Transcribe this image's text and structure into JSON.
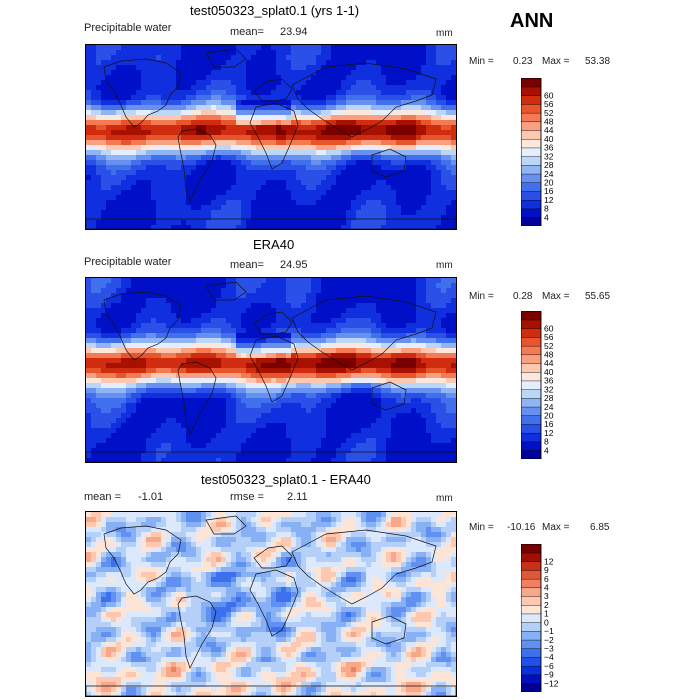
{
  "season": "ANN",
  "colors": {
    "abs_scale": [
      "#00009c",
      "#0010c8",
      "#1030e0",
      "#2a50e8",
      "#4070ec",
      "#6890f0",
      "#90b4f4",
      "#bcd6f8",
      "#e4eefc",
      "#fbe8dc",
      "#fcc8b0",
      "#faa080",
      "#f47a54",
      "#e8542c",
      "#d02c10",
      "#a81000",
      "#7a0000"
    ],
    "diff_scale": [
      "#000090",
      "#0010c0",
      "#0830e0",
      "#2050e8",
      "#3c70ec",
      "#6090f0",
      "#88b0f4",
      "#b4d0f8",
      "#dce8fc",
      "#fce4d6",
      "#fcc8b0",
      "#f8a88a",
      "#f08060",
      "#e05838",
      "#c83018",
      "#a01000",
      "#780000"
    ]
  },
  "chart_data": [
    {
      "type": "heatmap",
      "title": "test050323_splat0.1 (yrs 1-1)",
      "variable": "Precipitable water",
      "mean_label": "mean=",
      "mean_value": "23.94",
      "units": "mm",
      "min_label": "Min =",
      "min_value": "0.23",
      "max_label": "Max =",
      "max_value": "53.38",
      "colorbar_levels": [
        4,
        8,
        12,
        16,
        20,
        24,
        28,
        32,
        36,
        40,
        44,
        48,
        52,
        56,
        60
      ],
      "colorbar_labels": [
        "4",
        "8",
        "12",
        "16",
        "20",
        "24",
        "28",
        "32",
        "36",
        "40",
        "44",
        "48",
        "52",
        "56",
        "60"
      ]
    },
    {
      "type": "heatmap",
      "title": "ERA40",
      "variable": "Precipitable water",
      "mean_label": "mean=",
      "mean_value": "24.95",
      "units": "mm",
      "min_label": "Min =",
      "min_value": "0.28",
      "max_label": "Max =",
      "max_value": "55.65",
      "colorbar_levels": [
        4,
        8,
        12,
        16,
        20,
        24,
        28,
        32,
        36,
        40,
        44,
        48,
        52,
        56,
        60
      ],
      "colorbar_labels": [
        "4",
        "8",
        "12",
        "16",
        "20",
        "24",
        "28",
        "32",
        "36",
        "40",
        "44",
        "48",
        "52",
        "56",
        "60"
      ]
    },
    {
      "type": "heatmap",
      "title": "test050323_splat0.1 - ERA40",
      "mean_label": "mean =",
      "mean_value": "-1.01",
      "rmse_label": "rmse =",
      "rmse_value": "2.11",
      "units": "mm",
      "min_label": "Min =",
      "min_value": "-10.16",
      "max_label": "Max =",
      "max_value": "6.85",
      "colorbar_levels": [
        -12,
        -9,
        -6,
        -4,
        -3,
        -2,
        -1,
        0,
        1,
        2,
        3,
        4,
        6,
        9,
        12
      ],
      "colorbar_labels": [
        "−12",
        "−9",
        "−6",
        "−4",
        "−3",
        "−2",
        "−1",
        "0",
        "1",
        "2",
        "3",
        "4",
        "6",
        "9",
        "12"
      ]
    }
  ]
}
